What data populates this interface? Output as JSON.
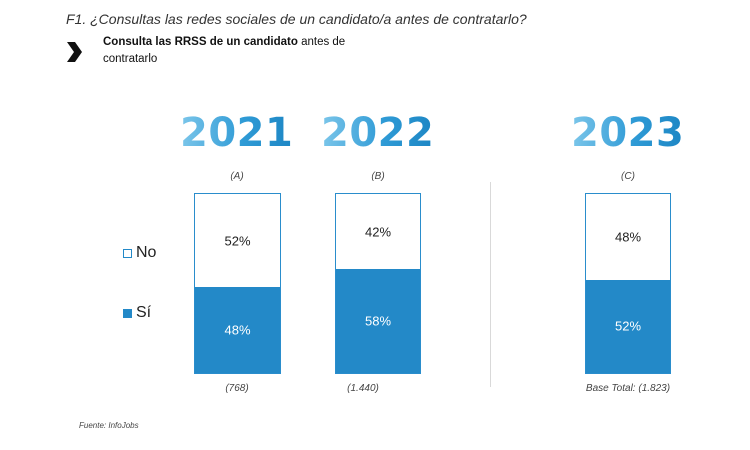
{
  "question": "F1. ¿Consultas las redes sociales de un candidato/a antes de contratarlo?",
  "subtitle": {
    "bold": "Consulta las RRSS de un candidato",
    "line1_rest": " antes de",
    "line2": "contratarlo"
  },
  "legend": {
    "no": "No",
    "si": "Sí"
  },
  "colors": {
    "si": "#2389c8",
    "no": "#ffffff",
    "border": "#2a8dcc"
  },
  "source": "Fuente: InfoJobs",
  "chart_data": {
    "type": "bar",
    "stacked": true,
    "percent": true,
    "categories": [
      "2021",
      "2022",
      "2023"
    ],
    "category_letters": [
      "(A)",
      "(B)",
      "(C)"
    ],
    "bases": [
      "(768)",
      "(1.440)",
      "Base Total: (1.823)"
    ],
    "series": [
      {
        "name": "Sí",
        "values": [
          48,
          58,
          52
        ],
        "labels": [
          "48%",
          "58%",
          "52%"
        ]
      },
      {
        "name": "No",
        "values": [
          52,
          42,
          48
        ],
        "labels": [
          "52%",
          "42%",
          "48%"
        ]
      }
    ]
  }
}
